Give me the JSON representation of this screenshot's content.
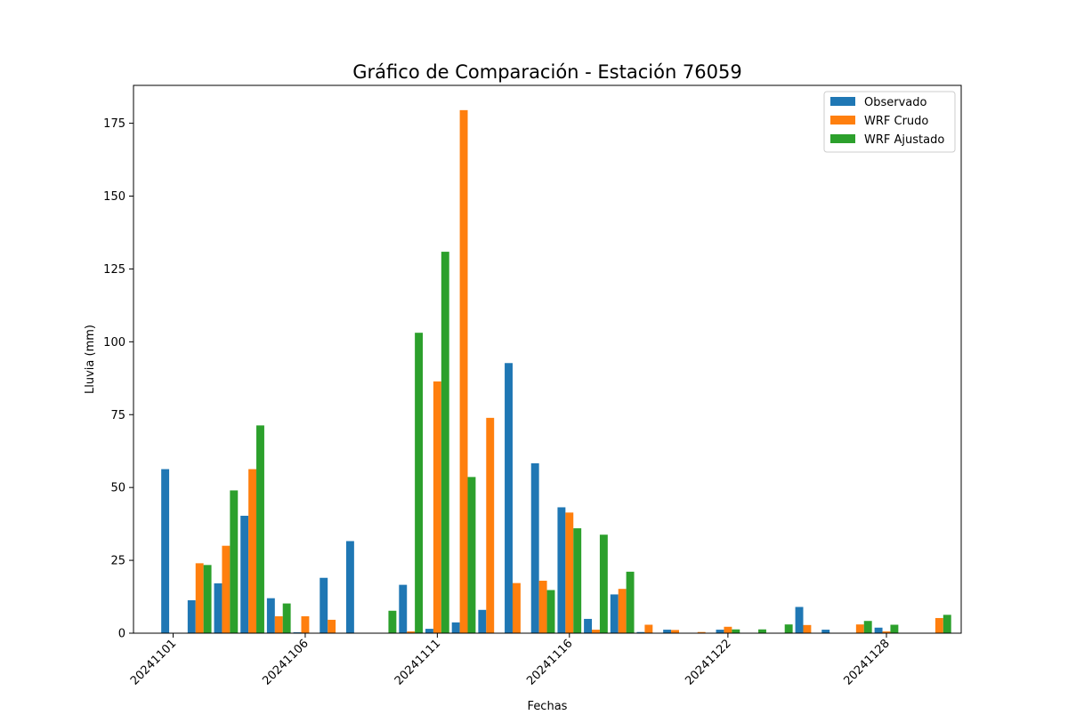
{
  "chart_data": {
    "type": "bar",
    "title": "Gráfico de Comparación - Estación 76059",
    "xlabel": "Fechas",
    "ylabel": "Lluvia (mm)",
    "ylim": [
      0,
      188
    ],
    "yticks": [
      0,
      25,
      50,
      75,
      100,
      125,
      150,
      175
    ],
    "xtick_labels": [
      {
        "date": "2024-11-01",
        "label": "20241101"
      },
      {
        "date": "2024-11-06",
        "label": "20241106"
      },
      {
        "date": "2024-11-11",
        "label": "20241111"
      },
      {
        "date": "2024-11-16",
        "label": "20241116"
      },
      {
        "date": "2024-11-22",
        "label": "20241122"
      },
      {
        "date": "2024-11-28",
        "label": "20241128"
      }
    ],
    "legend_position": "top-right",
    "grid": false,
    "categories": [
      "2024-11-01",
      "2024-11-02",
      "2024-11-03",
      "2024-11-04",
      "2024-11-05",
      "2024-11-06",
      "2024-11-07",
      "2024-11-08",
      "2024-11-09",
      "2024-11-10",
      "2024-11-11",
      "2024-11-12",
      "2024-11-13",
      "2024-11-14",
      "2024-11-15",
      "2024-11-16",
      "2024-11-17",
      "2024-11-18",
      "2024-11-19",
      "2024-11-20",
      "2024-11-21",
      "2024-11-22",
      "2024-11-23",
      "2024-11-24",
      "2024-11-25",
      "2024-11-26",
      "2024-11-27",
      "2024-11-28",
      "2024-11-29",
      "2024-11-30"
    ],
    "series": [
      {
        "name": "Observado",
        "color": "#1f77b4",
        "values": [
          56.3,
          11.3,
          17.1,
          40.3,
          12.0,
          0.3,
          19.0,
          31.6,
          0,
          16.6,
          1.5,
          3.7,
          8.0,
          92.7,
          58.3,
          43.2,
          4.9,
          13.3,
          0.4,
          1.2,
          0,
          1.2,
          0,
          0,
          9.0,
          1.2,
          0,
          1.9,
          0,
          0
        ]
      },
      {
        "name": "WRF Crudo",
        "color": "#ff7f0e",
        "values": [
          0,
          24.0,
          30.0,
          56.3,
          5.8,
          5.8,
          4.6,
          0,
          0,
          0.6,
          86.4,
          179.5,
          73.9,
          17.2,
          18.0,
          41.4,
          1.2,
          15.2,
          2.9,
          1.1,
          0.4,
          2.2,
          0,
          0,
          2.8,
          0,
          3.0,
          0.6,
          0,
          5.2
        ]
      },
      {
        "name": "WRF Ajustado",
        "color": "#2ca02c",
        "values": [
          0,
          23.4,
          49.0,
          71.3,
          10.2,
          0,
          0,
          0,
          7.7,
          103.1,
          130.9,
          53.6,
          0,
          0,
          14.8,
          36.0,
          33.8,
          21.1,
          0,
          0,
          0,
          1.3,
          1.3,
          3.0,
          0,
          0,
          4.2,
          2.9,
          0,
          6.3
        ]
      }
    ]
  }
}
